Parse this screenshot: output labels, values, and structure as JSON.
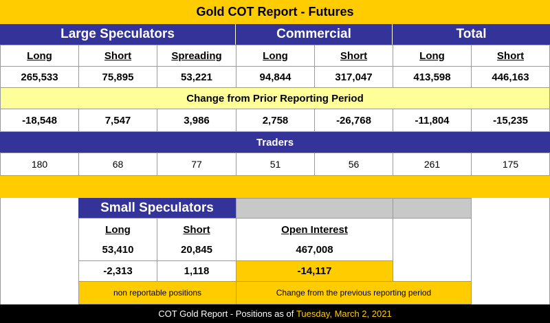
{
  "title": "Gold COT Report - Futures",
  "groups": {
    "large_speculators": "Large Speculators",
    "commercial": "Commercial",
    "total": "Total"
  },
  "columns": [
    "Long",
    "Short",
    "Spreading",
    "Long",
    "Short",
    "Long",
    "Short"
  ],
  "positions": [
    "265,533",
    "75,895",
    "53,221",
    "94,844",
    "317,047",
    "413,598",
    "446,163"
  ],
  "change_heading": "Change from Prior Reporting Period",
  "changes": [
    "-18,548",
    "7,547",
    "3,986",
    "2,758",
    "-26,768",
    "-11,804",
    "-15,235"
  ],
  "traders_heading": "Traders",
  "traders": [
    "180",
    "68",
    "77",
    "51",
    "56",
    "261",
    "175"
  ],
  "small_speculators": {
    "heading": "Small Speculators",
    "long_label": "Long",
    "short_label": "Short",
    "long_value": "53,410",
    "short_value": "20,845",
    "long_change": "-2,313",
    "short_change": "1,118",
    "note": "non reportable positions"
  },
  "open_interest": {
    "label": "Open Interest",
    "value": "467,008",
    "change": "-14,117",
    "note": "Change from the previous reporting period"
  },
  "footer": {
    "text": "COT Gold Report - Positions as of",
    "date": "Tuesday, March 2, 2021"
  },
  "colors": {
    "gold": "#ffcc00",
    "navy": "#333399",
    "pale_yellow": "#ffff99",
    "grey": "#c8c8c8",
    "black": "#000000"
  }
}
